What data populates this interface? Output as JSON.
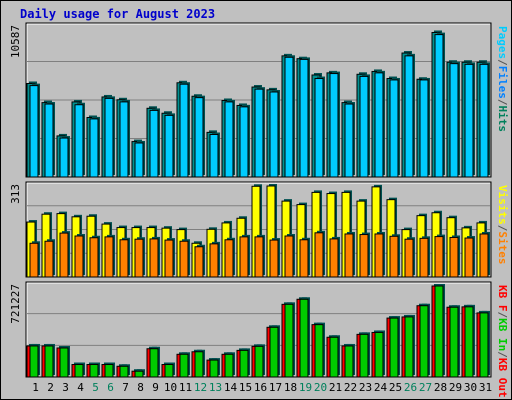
{
  "title": "Daily usage for August 2023",
  "colors": {
    "background": "#c0c0c0",
    "title": "#0000cc",
    "pages": "#00ccff",
    "files": "#0080ff",
    "hits": "#00805c",
    "sites": "#ff8000",
    "visits": "#ffff00",
    "kb_in": "#00cc00",
    "kb_out": "#ff0000",
    "shadow": "#005050"
  },
  "chart_data": [
    {
      "type": "bar",
      "name": "hits-files-pages",
      "categories": [
        "1",
        "2",
        "3",
        "4",
        "5",
        "6",
        "7",
        "8",
        "9",
        "10",
        "11",
        "12",
        "13",
        "14",
        "15",
        "16",
        "17",
        "18",
        "19",
        "20",
        "21",
        "22",
        "23",
        "24",
        "25",
        "26",
        "27",
        "28",
        "29",
        "30",
        "31"
      ],
      "weekend_days": [
        "5",
        "6",
        "12",
        "13",
        "19",
        "20",
        "26",
        "27"
      ],
      "ymax": 10587,
      "ymax_label": "10587",
      "legend": [
        "Pages",
        "/",
        "Files",
        "/",
        "Hits"
      ],
      "series": [
        {
          "name": "Hits",
          "values": [
            6600,
            5250,
            2900,
            5300,
            4200,
            5650,
            5450,
            2500,
            4850,
            4500,
            6650,
            5700,
            3150,
            5400,
            5050,
            6350,
            6150,
            8550,
            8350,
            7200,
            7350,
            5250,
            7250,
            7450,
            6950,
            8750,
            6900,
            10200,
            8100,
            8100,
            8100
          ]
        },
        {
          "name": "Pages",
          "values": [
            6450,
            5150,
            2750,
            5100,
            4100,
            5550,
            5300,
            2400,
            4700,
            4350,
            6550,
            5600,
            3000,
            5300,
            4950,
            6200,
            6000,
            8450,
            8300,
            6950,
            7300,
            5150,
            7100,
            7350,
            6850,
            8550,
            6850,
            10050,
            8000,
            7950,
            7950
          ]
        }
      ]
    },
    {
      "type": "bar",
      "name": "visits-sites",
      "categories": [
        "1",
        "2",
        "3",
        "4",
        "5",
        "6",
        "7",
        "8",
        "9",
        "10",
        "11",
        "12",
        "13",
        "14",
        "15",
        "16",
        "17",
        "18",
        "19",
        "20",
        "21",
        "22",
        "23",
        "24",
        "25",
        "26",
        "27",
        "28",
        "29",
        "30",
        "31"
      ],
      "ymax": 313,
      "ymax_label": "313",
      "legend": [
        "Visits",
        "/",
        "Sites"
      ],
      "series": [
        {
          "name": "Visits",
          "values": [
            189,
            216,
            218,
            207,
            209,
            182,
            170,
            170,
            170,
            168,
            163,
            116,
            164,
            186,
            202,
            312,
            313,
            261,
            249,
            291,
            287,
            291,
            261,
            310,
            266,
            163,
            211,
            221,
            204,
            169,
            186
          ]
        },
        {
          "name": "Sites",
          "values": [
            116,
            123,
            151,
            141,
            135,
            138,
            128,
            130,
            131,
            127,
            123,
            104,
            114,
            128,
            138,
            138,
            127,
            141,
            128,
            152,
            131,
            148,
            146,
            148,
            140,
            130,
            133,
            139,
            136,
            134,
            148
          ]
        }
      ]
    },
    {
      "type": "bar",
      "name": "kb-in-out",
      "categories": [
        "1",
        "2",
        "3",
        "4",
        "5",
        "6",
        "7",
        "8",
        "9",
        "10",
        "11",
        "12",
        "13",
        "14",
        "15",
        "16",
        "17",
        "18",
        "19",
        "20",
        "21",
        "22",
        "23",
        "24",
        "25",
        "26",
        "27",
        "28",
        "29",
        "30",
        "31"
      ],
      "ymax": 721227,
      "ymax_label": "721227",
      "legend": [
        "KB F",
        "/",
        "KB In",
        "/",
        "KB Out"
      ],
      "series": [
        {
          "name": "KB Out",
          "values": [
            246000,
            246000,
            230000,
            99000,
            99000,
            99000,
            85000,
            46000,
            224000,
            99000,
            180000,
            200000,
            134000,
            180000,
            211000,
            243000,
            394000,
            576000,
            616000,
            415000,
            315000,
            246000,
            338000,
            353000,
            467000,
            476000,
            565000,
            721227,
            553000,
            556000,
            508000
          ]
        },
        {
          "name": "KB In",
          "values": [
            246000,
            246000,
            230000,
            99000,
            99000,
            99000,
            85000,
            46000,
            224000,
            99000,
            180000,
            200000,
            134000,
            180000,
            211000,
            243000,
            394000,
            576000,
            616000,
            415000,
            315000,
            246000,
            338000,
            353000,
            467000,
            476000,
            565000,
            721227,
            553000,
            556000,
            508000
          ]
        }
      ]
    }
  ]
}
